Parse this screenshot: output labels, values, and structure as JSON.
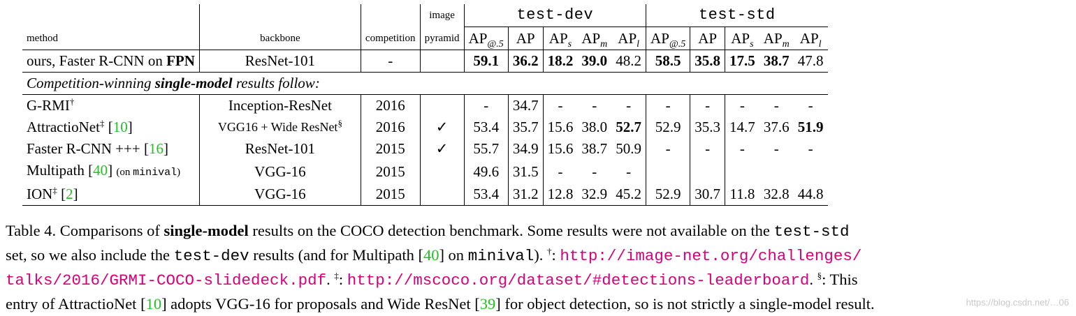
{
  "table": {
    "header": {
      "method": "method",
      "backbone": "backbone",
      "competition": "competition",
      "image_line1": "image",
      "image_line2": "pyramid",
      "group_dev": "test-dev",
      "group_std": "test-std",
      "metrics": [
        {
          "base": "AP",
          "sub": "@.5"
        },
        {
          "base": "AP",
          "sub": ""
        },
        {
          "base": "AP",
          "sub": "s"
        },
        {
          "base": "AP",
          "sub": "m"
        },
        {
          "base": "AP",
          "sub": "l"
        }
      ]
    },
    "ours": {
      "method_pre": "ours, Faster R-CNN on ",
      "method_bold": "FPN",
      "backbone": "ResNet-101",
      "competition": "-",
      "pyramid": "",
      "values": [
        "59.1",
        "36.2",
        "18.2",
        "39.0",
        "48.2",
        "58.5",
        "35.8",
        "17.5",
        "38.7",
        "47.8"
      ]
    },
    "section_note": {
      "pre": "Competition-winning ",
      "bold": "single-model",
      "post": " results follow:"
    },
    "rows": [
      {
        "name": "G-RMI",
        "mark": "†",
        "ref": "",
        "note": "",
        "note_mono": "",
        "note_end": "",
        "backbone": "Inception-ResNet",
        "backbone_mark": "",
        "competition": "2016",
        "pyramid": "",
        "values": [
          "-",
          "34.7",
          "-",
          "-",
          "-",
          "-",
          "-",
          "-",
          "-",
          "-"
        ]
      },
      {
        "name": "AttractioNet",
        "mark": "‡",
        "ref": "10",
        "note": "",
        "note_mono": "",
        "note_end": "",
        "backbone": "VGG16 + Wide ResNet",
        "backbone_mark": "§",
        "competition": "2016",
        "pyramid": "✓",
        "values": [
          "53.4",
          "35.7",
          "15.6",
          "38.0",
          "52.7",
          "52.9",
          "35.3",
          "14.7",
          "37.6",
          "51.9"
        ]
      },
      {
        "name": "Faster R-CNN +++",
        "mark": "",
        "ref": "16",
        "note": "",
        "note_mono": "",
        "note_end": "",
        "backbone": "ResNet-101",
        "backbone_mark": "",
        "competition": "2015",
        "pyramid": "✓",
        "values": [
          "55.7",
          "34.9",
          "15.6",
          "38.7",
          "50.9",
          "-",
          "-",
          "-",
          "-",
          "-"
        ]
      },
      {
        "name": "Multipath",
        "mark": "",
        "ref": "40",
        "note": "(on ",
        "note_mono": "minival",
        "note_end": ")",
        "backbone": "VGG-16",
        "backbone_mark": "",
        "competition": "2015",
        "pyramid": "",
        "values": [
          "49.6",
          "31.5",
          "-",
          "-",
          "-",
          "",
          "",
          "",
          "",
          ""
        ]
      },
      {
        "name": "ION",
        "mark": "‡",
        "ref": "2",
        "note": "",
        "note_mono": "",
        "note_end": "",
        "backbone": "VGG-16",
        "backbone_mark": "",
        "competition": "2015",
        "pyramid": "",
        "values": [
          "53.4",
          "31.2",
          "12.8",
          "32.9",
          "45.2",
          "52.9",
          "30.7",
          "11.8",
          "32.8",
          "44.8"
        ]
      }
    ]
  },
  "caption": {
    "t1": "Table 4. Comparisons of ",
    "t1_bold": "single-model",
    "t2": " results on the COCO detection benchmark.  Some results were not available on the ",
    "t2_mono": "test-std",
    "t3": "set, so we also include the ",
    "t3_mono": "test-dev",
    "t4": " results (and for Multipath [",
    "t4_ref": "40",
    "t5": "] on ",
    "t5_mono": "minival",
    "t6": ").  ",
    "dagger": "†",
    "t7": ": ",
    "url1a": "http://image-net.org/challenges/",
    "url1b": "talks/2016/GRMI-COCO-slidedeck.pdf",
    "t8": ". ",
    "ddagger": "‡",
    "t9": ": ",
    "url2": "http://mscoco.org/dataset/#detections-leaderboard",
    "t10": ". ",
    "section": "§",
    "t11": ": This",
    "t12": "entry of AttractioNet [",
    "t12_ref": "10",
    "t13": "] adopts VGG-16 for proposals and Wide ResNet [",
    "t13_ref": "39",
    "t14": "] for object detection, so is not strictly a single-model result."
  },
  "watermark": "https://blog.csdn.net/…06"
}
